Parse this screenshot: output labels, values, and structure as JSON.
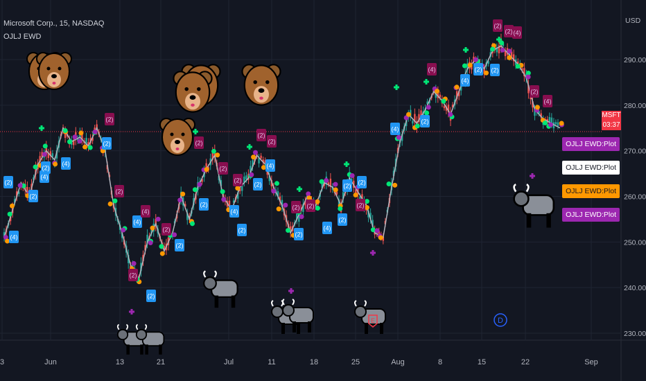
{
  "header": {
    "symbol_line": "Microsoft Corp., 15, NASDAQ",
    "indicator": "OJLJ EWD"
  },
  "price_scale": {
    "currency": "USD",
    "ticks": [
      "290.00",
      "280.00",
      "270.00",
      "260.00",
      "250.00",
      "240.00",
      "230.00"
    ],
    "current_symbol": "MSFT",
    "countdown": "03:37"
  },
  "legend_tags": [
    {
      "label": "OJLJ EWD:Plot",
      "bg": "#9c27b0",
      "fg": "#ffffff"
    },
    {
      "label": "OJLJ EWD:Plot",
      "bg": "#ffffff",
      "fg": "#131722"
    },
    {
      "label": "OJLJ EWD:Plot",
      "bg": "#ff9800",
      "fg": "#131722"
    },
    {
      "label": "OJLJ EWD:Plot",
      "bg": "#9c27b0",
      "fg": "#ffffff"
    }
  ],
  "time_axis": [
    "3",
    "Jun",
    "13",
    "21",
    "Jul",
    "11",
    "18",
    "25",
    "Aug",
    "8",
    "15",
    "22",
    "Sep"
  ],
  "wave_labels": [
    "(2)",
    "(4)",
    "(2)",
    "(4)",
    "(2)",
    "(4)",
    "(2)",
    "(4)",
    "(2)",
    "(2)",
    "(2)",
    "(4)",
    "(2)",
    "(2)",
    "(4)",
    "(2)",
    "(4)",
    "(2)",
    "(2)",
    "(2)",
    "(4)",
    "(2)",
    "(4)",
    "(2)",
    "(2)",
    "(2)",
    "(2)",
    "(2)",
    "(4)",
    "(2)",
    "(2)",
    "(2)",
    "(2)",
    "(2)",
    "(2)",
    "(2)",
    "(2)",
    "(2)",
    "(4)",
    "(2)"
  ],
  "markers": {
    "dividend": "D",
    "earnings": "E"
  },
  "colors": {
    "background": "#131722",
    "price_line": "#f23645",
    "up": "#26a69a",
    "down": "#ef5350",
    "bull_label_bg": "#2196f3",
    "bear_label_bg": "#880e4f",
    "wave_line": "#b2b5be",
    "plot_purple": "#9c27b0",
    "plot_orange": "#ff9800",
    "plot_green": "#00e676"
  },
  "chart_data": {
    "type": "line",
    "ylim": [
      228,
      297
    ],
    "current_price": 274.2,
    "x_ticks": [
      "3",
      "Jun",
      "13",
      "21",
      "Jul",
      "11",
      "18",
      "25",
      "Aug",
      "8",
      "15",
      "22",
      "Sep"
    ],
    "wave_path": [
      251,
      257,
      263,
      260,
      267,
      270,
      268,
      275,
      272,
      273,
      271,
      275,
      270,
      258,
      252,
      245,
      242,
      250,
      254,
      248,
      252,
      260,
      255,
      262,
      266,
      269,
      260,
      257,
      262,
      264,
      269,
      267,
      262,
      258,
      252,
      256,
      260,
      258,
      263,
      262,
      258,
      264,
      261,
      258,
      252,
      251,
      262,
      272,
      278,
      276,
      279,
      283,
      281,
      278,
      283,
      288,
      290,
      288,
      292,
      293,
      291,
      289,
      286,
      279,
      277,
      276,
      275
    ]
  }
}
